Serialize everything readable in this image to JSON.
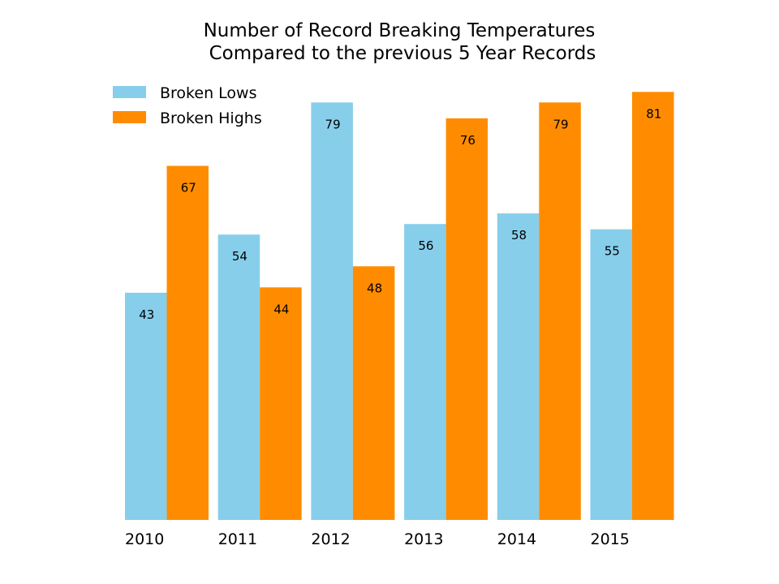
{
  "chart_data": {
    "type": "bar",
    "title": "Number of Record Breaking Temperatures\nCompared to the previous 5 Year Records",
    "title_lines": [
      "Number of Record Breaking Temperatures",
      "Compared to the previous 5 Year Records"
    ],
    "categories": [
      "2010",
      "2011",
      "2012",
      "2013",
      "2014",
      "2015"
    ],
    "series": [
      {
        "name": "Broken Lows",
        "color": "#87ceeb",
        "values": [
          43,
          54,
          79,
          56,
          58,
          55
        ]
      },
      {
        "name": "Broken Highs",
        "color": "#ff8c00",
        "values": [
          67,
          44,
          48,
          76,
          79,
          81
        ]
      }
    ],
    "ylim": [
      0,
      85
    ],
    "grid": false,
    "legend_position": "top-left",
    "data_labels": true,
    "axes_visible": false
  }
}
